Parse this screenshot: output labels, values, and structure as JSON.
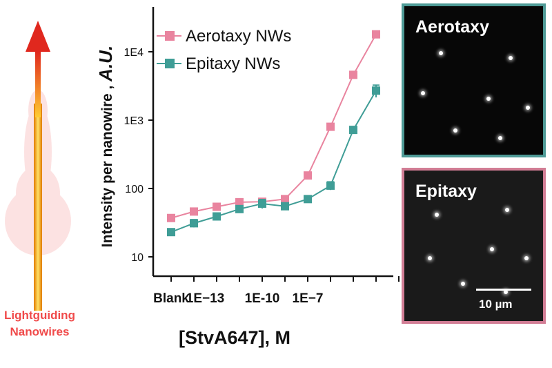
{
  "illustration": {
    "caption_line1": "Lightguiding",
    "caption_line2": "Nanowires",
    "caption_color": "#f04a4a",
    "arrow_color": "#e0281e"
  },
  "chart_data": {
    "type": "line",
    "title": "",
    "xlabel": "[StvA647], M",
    "ylabel": "Intensity per nanowire , A.U.",
    "y_scale": "log",
    "ylim": [
      7,
      20000
    ],
    "y_ticks": [
      "10",
      "100",
      "1E3",
      "1E4"
    ],
    "x_tick_labels": [
      "Blank",
      "1E−13",
      "1E-10",
      "1E−7"
    ],
    "x_ticks_pos": [
      -1,
      0.5,
      3,
      5
    ],
    "xlim": [
      -1.5,
      12
    ],
    "grid": false,
    "legend_position": "top-left",
    "series": [
      {
        "name": "Aerotaxy NWs",
        "color": "#e9849f",
        "x": [
          -1,
          0,
          1,
          2,
          3,
          4,
          5,
          6,
          7,
          8,
          9
        ],
        "y": [
          37,
          46,
          54,
          63,
          64,
          70,
          155,
          800,
          4600,
          18000,
          null
        ],
        "err": [
          2,
          3,
          3,
          3,
          4,
          4,
          8,
          40,
          300,
          900,
          null
        ]
      },
      {
        "name": "Epitaxy NWs",
        "color": "#3f9d96",
        "x": [
          -1,
          0,
          1,
          2,
          3,
          4,
          5,
          6,
          7,
          8
        ],
        "y": [
          23,
          31,
          39,
          50,
          60,
          55,
          70,
          110,
          720,
          2700
        ],
        "err": [
          2,
          4,
          3,
          4,
          9,
          6,
          4,
          15,
          60,
          550
        ]
      }
    ]
  },
  "micrographs": {
    "aerotaxy": {
      "label": "Aerotaxy",
      "border_color": "#4e9a96"
    },
    "epitaxy": {
      "label": "Epitaxy",
      "border_color": "#d27d95",
      "scale_label": "10 µm"
    }
  }
}
